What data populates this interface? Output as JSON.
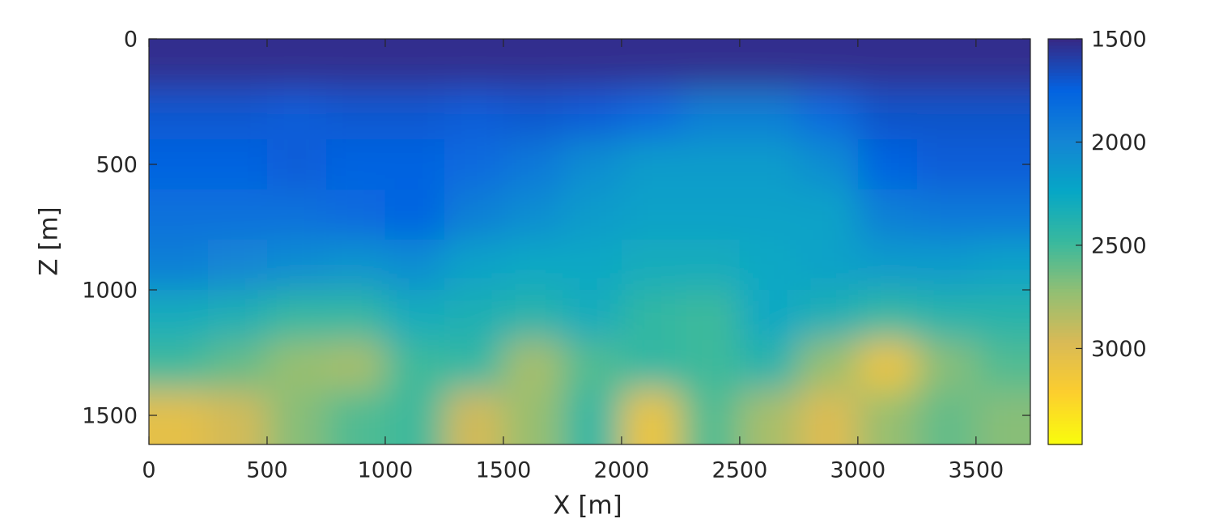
{
  "chart_data": {
    "type": "heatmap",
    "xlabel": "X [m]",
    "ylabel": "Z [m]",
    "x": [
      125,
      375,
      625,
      875,
      1125,
      1375,
      1625,
      1875,
      2125,
      2375,
      2625,
      2875,
      3125,
      3375,
      3625
    ],
    "y": [
      100,
      300,
      500,
      700,
      900,
      1100,
      1300,
      1500
    ],
    "values": [
      [
        1520,
        1520,
        1520,
        1520,
        1520,
        1520,
        1520,
        1520,
        1520,
        1520,
        1520,
        1520,
        1520,
        1520,
        1520
      ],
      [
        1700,
        1700,
        1720,
        1700,
        1700,
        1720,
        1700,
        1720,
        1800,
        1950,
        1950,
        1800,
        1680,
        1680,
        1680
      ],
      [
        1750,
        1750,
        1720,
        1750,
        1750,
        1800,
        1900,
        2050,
        2150,
        2150,
        2150,
        2050,
        1750,
        1720,
        1720
      ],
      [
        1850,
        1850,
        1850,
        1800,
        1750,
        1950,
        2050,
        2150,
        2200,
        2200,
        2200,
        2200,
        1950,
        1900,
        1900
      ],
      [
        1950,
        2000,
        2050,
        2100,
        2050,
        2200,
        2250,
        2250,
        2300,
        2300,
        2250,
        2200,
        2150,
        2150,
        2200
      ],
      [
        2300,
        2350,
        2450,
        2450,
        2300,
        2350,
        2400,
        2300,
        2450,
        2500,
        2250,
        2350,
        2450,
        2400,
        2400
      ],
      [
        2500,
        2600,
        2750,
        2800,
        2500,
        2450,
        2800,
        2550,
        2450,
        2500,
        2400,
        2750,
        3100,
        2700,
        2550
      ],
      [
        3050,
        2950,
        2700,
        2550,
        2500,
        2950,
        2750,
        2450,
        3100,
        2550,
        2800,
        3000,
        2750,
        2600,
        2700
      ]
    ],
    "xlim": [
      0,
      3730
    ],
    "ylim": [
      0,
      1616
    ],
    "y_reversed": true,
    "xticks": [
      0,
      500,
      1000,
      1500,
      2000,
      2500,
      3000,
      3500
    ],
    "yticks": [
      0,
      500,
      1000,
      1500
    ],
    "colormap": [
      "#352a87",
      "#0363e1",
      "#1485d4",
      "#06a7c6",
      "#38b99e",
      "#92bf73",
      "#d9ba56",
      "#fcce2e",
      "#f9fb0e"
    ],
    "clim": [
      1500,
      3465
    ],
    "cticks": [
      1500,
      2000,
      2500,
      3000
    ]
  }
}
